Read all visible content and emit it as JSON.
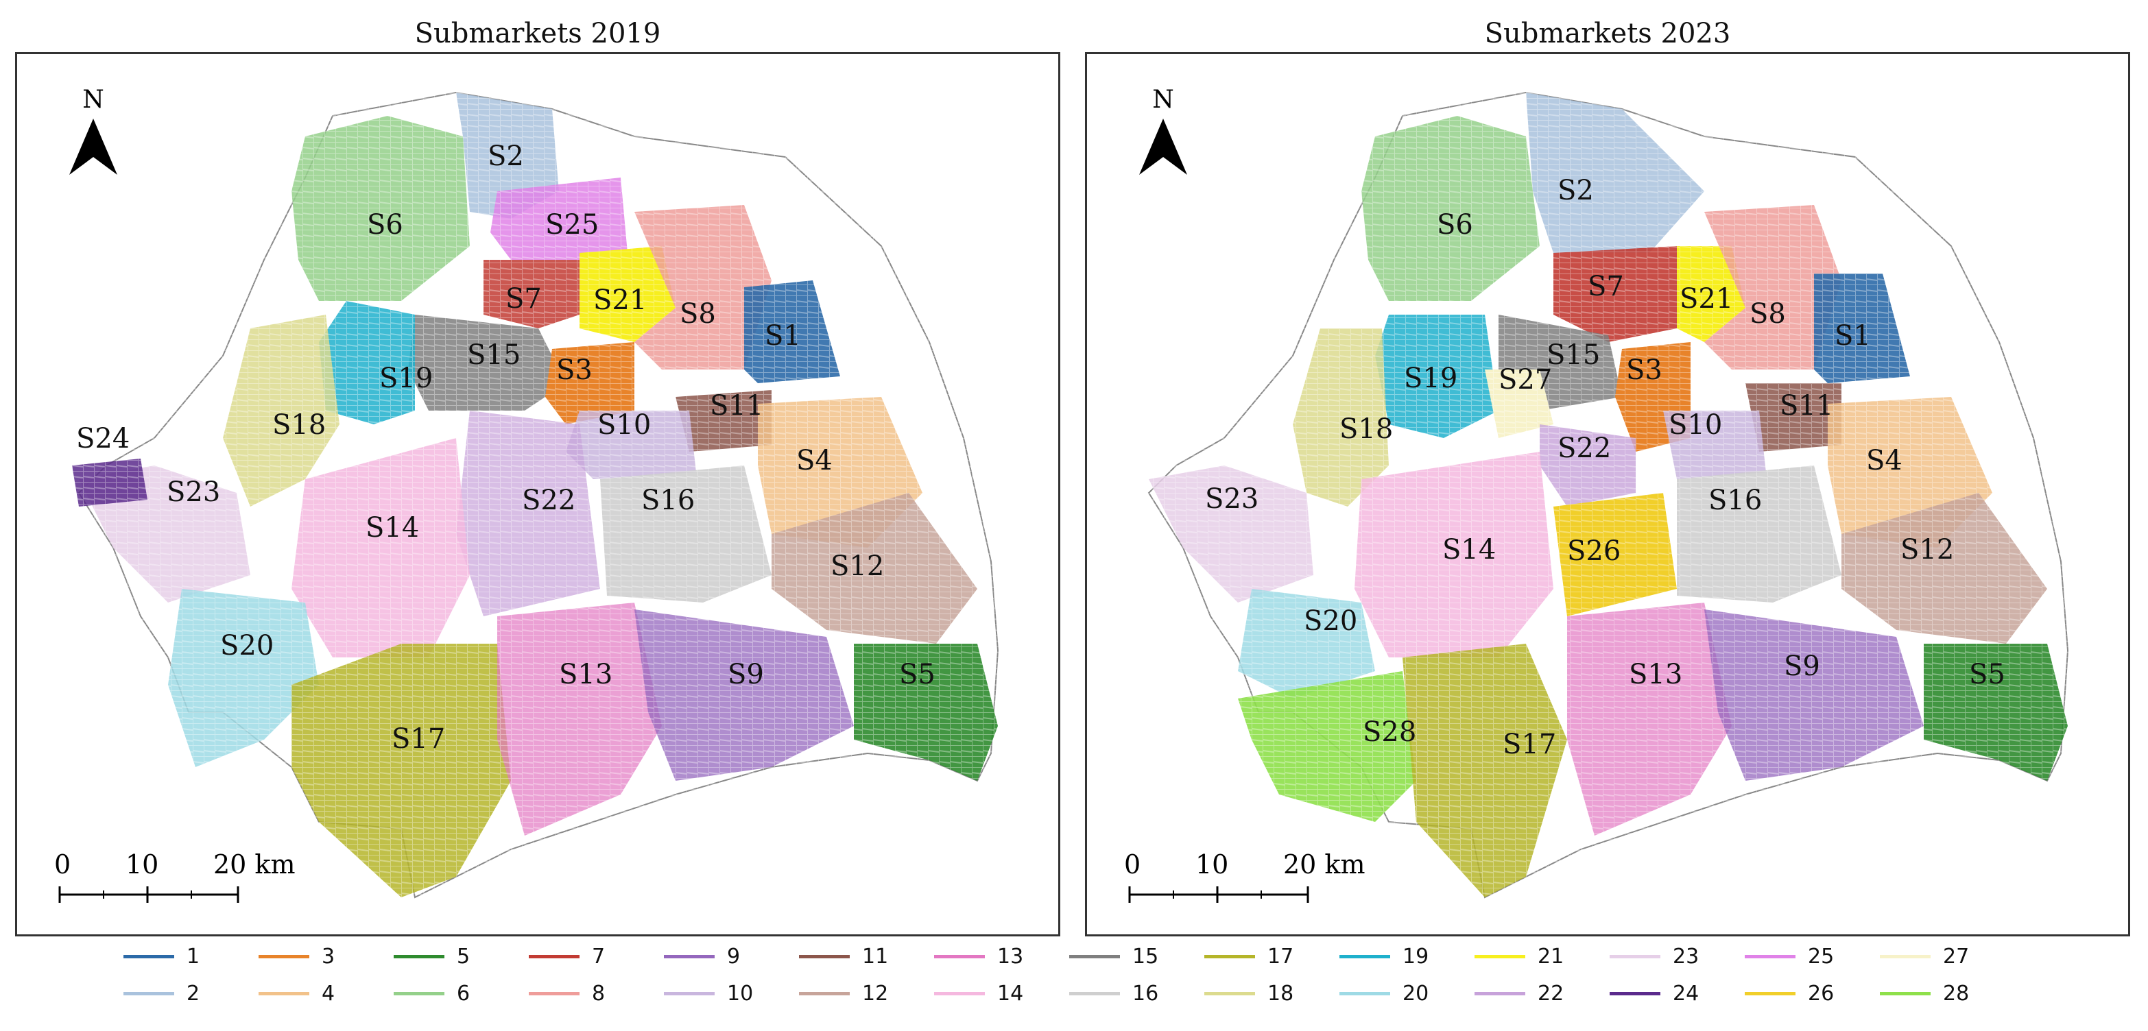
{
  "maps": [
    {
      "title": "Submarkets 2019",
      "north_label": "N",
      "scale_labels": [
        "0",
        "10",
        "20 km"
      ],
      "labels": [
        "S1",
        "S2",
        "S3",
        "S4",
        "S5",
        "S6",
        "S7",
        "S8",
        "S9",
        "S10",
        "S11",
        "S12",
        "S13",
        "S14",
        "S15",
        "S16",
        "S17",
        "S18",
        "S19",
        "S20",
        "S21",
        "S22",
        "S23",
        "S24",
        "S25"
      ]
    },
    {
      "title": "Submarkets 2023",
      "north_label": "N",
      "scale_labels": [
        "0",
        "10",
        "20 km"
      ],
      "labels": [
        "S1",
        "S2",
        "S3",
        "S4",
        "S5",
        "S6",
        "S7",
        "S8",
        "S9",
        "S10",
        "S11",
        "S12",
        "S13",
        "S14",
        "S15",
        "S16",
        "S17",
        "S18",
        "S19",
        "S20",
        "S21",
        "S22",
        "S23",
        "S26",
        "S27",
        "S28"
      ]
    }
  ],
  "legend": {
    "items": [
      {
        "label": "1",
        "color": "#2c6aa8"
      },
      {
        "label": "2",
        "color": "#a9c2dd"
      },
      {
        "label": "3",
        "color": "#e8832a"
      },
      {
        "label": "4",
        "color": "#f2c28a"
      },
      {
        "label": "5",
        "color": "#2e8b2e"
      },
      {
        "label": "6",
        "color": "#94d08a"
      },
      {
        "label": "7",
        "color": "#c23b33"
      },
      {
        "label": "8",
        "color": "#ef9d9a"
      },
      {
        "label": "9",
        "color": "#9467bd"
      },
      {
        "label": "10",
        "color": "#c9b6de"
      },
      {
        "label": "11",
        "color": "#8c564b"
      },
      {
        "label": "12",
        "color": "#c7a49a"
      },
      {
        "label": "13",
        "color": "#e377c2"
      },
      {
        "label": "14",
        "color": "#f5b8df"
      },
      {
        "label": "15",
        "color": "#7f7f7f"
      },
      {
        "label": "16",
        "color": "#cfcfcf"
      },
      {
        "label": "17",
        "color": "#b5b529"
      },
      {
        "label": "18",
        "color": "#dcdb8e"
      },
      {
        "label": "19",
        "color": "#1fb0cc"
      },
      {
        "label": "20",
        "color": "#9edae5"
      },
      {
        "label": "21",
        "color": "#f7ef1f"
      },
      {
        "label": "22",
        "color": "#c7a2da"
      },
      {
        "label": "23",
        "color": "#e6cfe8"
      },
      {
        "label": "24",
        "color": "#5b2a8c"
      },
      {
        "label": "25",
        "color": "#e082e8"
      },
      {
        "label": "26",
        "color": "#f1cf2a"
      },
      {
        "label": "27",
        "color": "#f7f2c9"
      },
      {
        "label": "28",
        "color": "#8ee04a"
      }
    ]
  }
}
